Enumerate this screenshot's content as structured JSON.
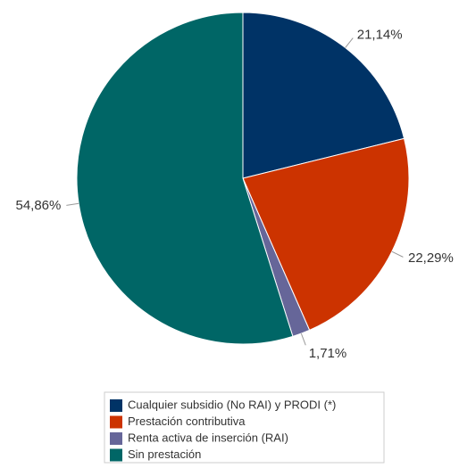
{
  "chart_data": {
    "type": "pie",
    "categories": [
      "Cualquier subsidio (No RAI) y PRODI (*)",
      "Prestación contributiva",
      "Renta activa de inserción (RAI)",
      "Sin prestación"
    ],
    "values": [
      21.14,
      22.29,
      1.71,
      54.86
    ],
    "value_labels": [
      "21,14%",
      "22,29%",
      "1,71%",
      "54,86%"
    ],
    "colors": [
      "#003366",
      "#cc3300",
      "#666699",
      "#006666"
    ],
    "legend": "bottom"
  }
}
